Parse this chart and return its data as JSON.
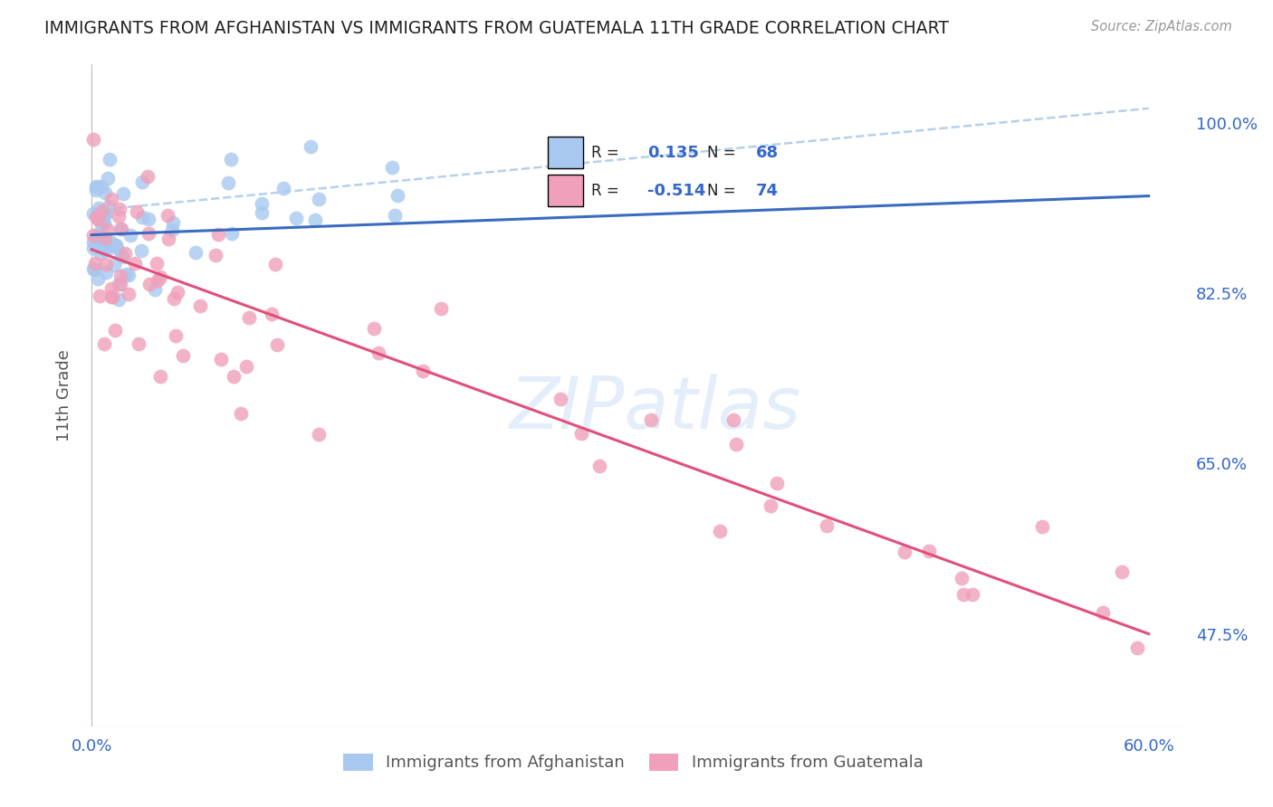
{
  "title": "IMMIGRANTS FROM AFGHANISTAN VS IMMIGRANTS FROM GUATEMALA 11TH GRADE CORRELATION CHART",
  "source": "Source: ZipAtlas.com",
  "ylabel": "11th Grade",
  "ylabel_ticks": [
    "100.0%",
    "82.5%",
    "65.0%",
    "47.5%"
  ],
  "ylabel_tick_vals": [
    1.0,
    0.825,
    0.65,
    0.475
  ],
  "legend_label1": "Immigrants from Afghanistan",
  "legend_label2": "Immigrants from Guatemala",
  "R1": 0.135,
  "N1": 68,
  "R2": -0.514,
  "N2": 74,
  "color_afghanistan": "#a8c8f0",
  "color_guatemala": "#f0a0ba",
  "color_trendline1": "#3a6bc0",
  "color_trendline2": "#e0507a",
  "color_trendline_dash": "#aac8e8",
  "background_color": "#ffffff",
  "grid_color": "#d8d8e8",
  "watermark": "ZIPatlas",
  "xlim_min": -0.005,
  "xlim_max": 0.62,
  "ylim_min": 0.38,
  "ylim_max": 1.06,
  "af_trend_x0": 0.0,
  "af_trend_x1": 0.6,
  "af_trend_y0": 0.885,
  "af_trend_y1": 0.925,
  "gt_trend_x0": 0.0,
  "gt_trend_x1": 0.6,
  "gt_trend_y0": 0.87,
  "gt_trend_y1": 0.475,
  "dash_trend_x0": 0.0,
  "dash_trend_x1": 0.6,
  "dash_trend_y0": 0.91,
  "dash_trend_y1": 1.015
}
